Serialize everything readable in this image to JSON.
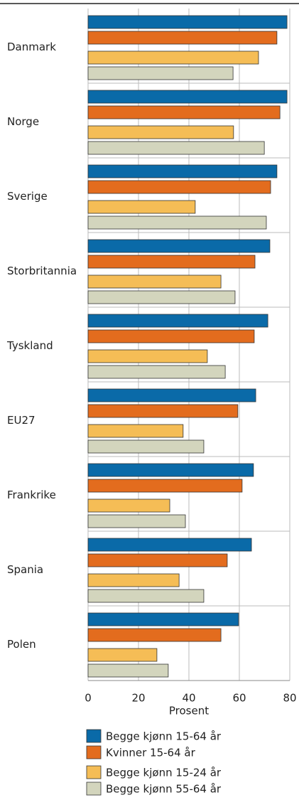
{
  "chart_data": {
    "type": "bar",
    "orientation": "horizontal",
    "categories": [
      "Danmark",
      "Norge",
      "Sverige",
      "Storbritannia",
      "Tyskland",
      "EU27",
      "Frankrike",
      "Spania",
      "Polen"
    ],
    "series": [
      {
        "name": "Begge kjønn 15-64 år",
        "color": "#0a6aa8",
        "values": [
          78.9,
          78.9,
          74.9,
          72.1,
          71.3,
          66.5,
          65.6,
          64.8,
          59.7
        ]
      },
      {
        "name": "Kvinner 15-64 år",
        "color": "#e36c1e",
        "values": [
          74.9,
          76.1,
          72.4,
          66.2,
          65.9,
          59.4,
          61.1,
          55.2,
          52.7
        ]
      },
      {
        "name": "Begge kjønn 15-24 år",
        "color": "#f5bd56",
        "values": [
          67.6,
          57.7,
          42.5,
          52.7,
          47.3,
          37.7,
          32.4,
          36.1,
          27.3
        ]
      },
      {
        "name": "Begge kjønn 55-64 år",
        "color": "#d3d5bd",
        "values": [
          57.5,
          69.9,
          70.7,
          58.3,
          54.4,
          45.9,
          38.6,
          45.9,
          31.8
        ]
      }
    ],
    "xlabel": "Prosent",
    "xlim": [
      0,
      80
    ],
    "xticks": [
      0,
      20,
      40,
      60,
      80
    ],
    "grid": true,
    "legend": "bottom"
  }
}
